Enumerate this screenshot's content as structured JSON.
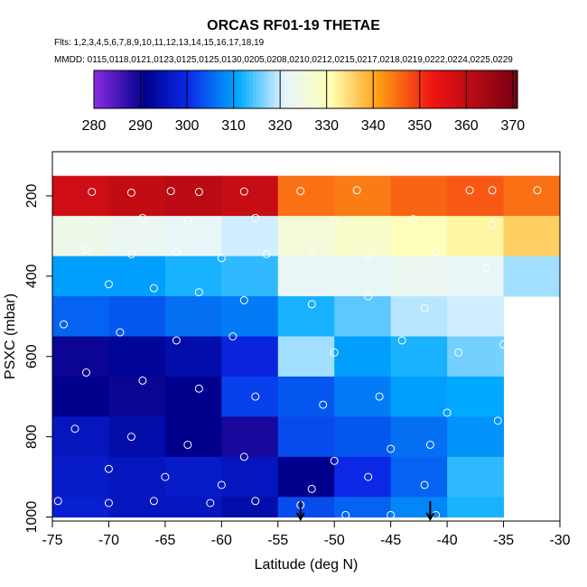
{
  "chart_data": {
    "type": "heatmap",
    "title": "ORCAS RF01-19 THETAE",
    "flights_note": "Flts: 1,2,3,4,5,6,7,8,9,10,11,12,13,14,15,16,17,18,19",
    "mmdd_note": "MMDD: 0115,0118,0121,0123,0125,0125,0130,0205,0208,0210,0212,0215,0217,0218,0219,0222,0224,0225,0229",
    "xlabel": "Latitude (deg N)",
    "ylabel": "PSXC (mbar)",
    "xlim": [
      -75,
      -30
    ],
    "ylim": [
      1010,
      90
    ],
    "x_ticks": [
      -75,
      -70,
      -65,
      -60,
      -55,
      -50,
      -45,
      -40,
      -35,
      -30
    ],
    "x_tick_labels": [
      "-75",
      "-70",
      "-65",
      "-60",
      "-55",
      "-50",
      "-45",
      "-40",
      "-35",
      "-30"
    ],
    "y_ticks": [
      200,
      400,
      600,
      800,
      1000
    ],
    "y_tick_labels": [
      "200",
      "400",
      "600",
      "800",
      "1000"
    ],
    "colorbar": {
      "range": [
        280,
        371
      ],
      "ticks": [
        280,
        290,
        300,
        310,
        320,
        330,
        340,
        350,
        360,
        370
      ],
      "tick_labels": [
        "280",
        "290",
        "300",
        "310",
        "320",
        "330",
        "340",
        "350",
        "360",
        "370"
      ]
    },
    "x_bins": [
      -75,
      -70,
      -65,
      -60,
      -55,
      -50,
      -45,
      -40,
      -35,
      -30
    ],
    "p_bins": [
      150,
      250,
      350,
      450,
      550,
      650,
      750,
      850,
      950,
      1000
    ],
    "values": [
      [
        358,
        360,
        361,
        359,
        345,
        344,
        346,
        347,
        345
      ],
      [
        324,
        323,
        322,
        320,
        326,
        328,
        330,
        332,
        336
      ],
      [
        310,
        310,
        312,
        313,
        322,
        322,
        323,
        322,
        318
      ],
      [
        305,
        304,
        306,
        307,
        312,
        315,
        319,
        320,
        null
      ],
      [
        290,
        292,
        294,
        299,
        318,
        310,
        312,
        316,
        null
      ],
      [
        291,
        290,
        291,
        302,
        304,
        307,
        310,
        311,
        null
      ],
      [
        296,
        294,
        291,
        289,
        303,
        304,
        306,
        309,
        null
      ],
      [
        297,
        296,
        297,
        296,
        291,
        300,
        305,
        313,
        null
      ],
      [
        298,
        296,
        296,
        294,
        303,
        305,
        308,
        312,
        null
      ]
    ],
    "flight_tracks": [
      {
        "lat": -71.5,
        "p": 190
      },
      {
        "lat": -68,
        "p": 192
      },
      {
        "lat": -64.5,
        "p": 188
      },
      {
        "lat": -62,
        "p": 190
      },
      {
        "lat": -58,
        "p": 189
      },
      {
        "lat": -53,
        "p": 188
      },
      {
        "lat": -48,
        "p": 186
      },
      {
        "lat": -38,
        "p": 186
      },
      {
        "lat": -36,
        "p": 186
      },
      {
        "lat": -32,
        "p": 186
      },
      {
        "lat": -71.5,
        "p": 260
      },
      {
        "lat": -67,
        "p": 255
      },
      {
        "lat": -63,
        "p": 262
      },
      {
        "lat": -57,
        "p": 255
      },
      {
        "lat": -50,
        "p": 262
      },
      {
        "lat": -43,
        "p": 258
      },
      {
        "lat": -36,
        "p": 272
      },
      {
        "lat": -72,
        "p": 333
      },
      {
        "lat": -68,
        "p": 345
      },
      {
        "lat": -64,
        "p": 340
      },
      {
        "lat": -60,
        "p": 355
      },
      {
        "lat": -56,
        "p": 345
      },
      {
        "lat": -52,
        "p": 338
      },
      {
        "lat": -47,
        "p": 348
      },
      {
        "lat": -41,
        "p": 342
      },
      {
        "lat": -36.5,
        "p": 380
      },
      {
        "lat": -70,
        "p": 420
      },
      {
        "lat": -66,
        "p": 430
      },
      {
        "lat": -62,
        "p": 440
      },
      {
        "lat": -58,
        "p": 460
      },
      {
        "lat": -52,
        "p": 470
      },
      {
        "lat": -47,
        "p": 450
      },
      {
        "lat": -42,
        "p": 480
      },
      {
        "lat": -74,
        "p": 520
      },
      {
        "lat": -69,
        "p": 540
      },
      {
        "lat": -64,
        "p": 560
      },
      {
        "lat": -59,
        "p": 550
      },
      {
        "lat": -50,
        "p": 590
      },
      {
        "lat": -44,
        "p": 560
      },
      {
        "lat": -39,
        "p": 590
      },
      {
        "lat": -35,
        "p": 570
      },
      {
        "lat": -72,
        "p": 640
      },
      {
        "lat": -67,
        "p": 660
      },
      {
        "lat": -62,
        "p": 680
      },
      {
        "lat": -57,
        "p": 700
      },
      {
        "lat": -51,
        "p": 720
      },
      {
        "lat": -46,
        "p": 700
      },
      {
        "lat": -40,
        "p": 740
      },
      {
        "lat": -35.5,
        "p": 760
      },
      {
        "lat": -73,
        "p": 780
      },
      {
        "lat": -68,
        "p": 800
      },
      {
        "lat": -63,
        "p": 820
      },
      {
        "lat": -58,
        "p": 850
      },
      {
        "lat": -50,
        "p": 860
      },
      {
        "lat": -45,
        "p": 830
      },
      {
        "lat": -41.5,
        "p": 820
      },
      {
        "lat": -70,
        "p": 880
      },
      {
        "lat": -65,
        "p": 900
      },
      {
        "lat": -60,
        "p": 920
      },
      {
        "lat": -52,
        "p": 930
      },
      {
        "lat": -47,
        "p": 900
      },
      {
        "lat": -42,
        "p": 920
      },
      {
        "lat": -74.5,
        "p": 960
      },
      {
        "lat": -70,
        "p": 965
      },
      {
        "lat": -66,
        "p": 960
      },
      {
        "lat": -61,
        "p": 965
      },
      {
        "lat": -57,
        "p": 960
      },
      {
        "lat": -53,
        "p": 970
      },
      {
        "lat": -49,
        "p": 995
      },
      {
        "lat": -45,
        "p": 995
      },
      {
        "lat": -41,
        "p": 995
      }
    ],
    "arrows_lat": [
      -53,
      -41.5
    ]
  }
}
